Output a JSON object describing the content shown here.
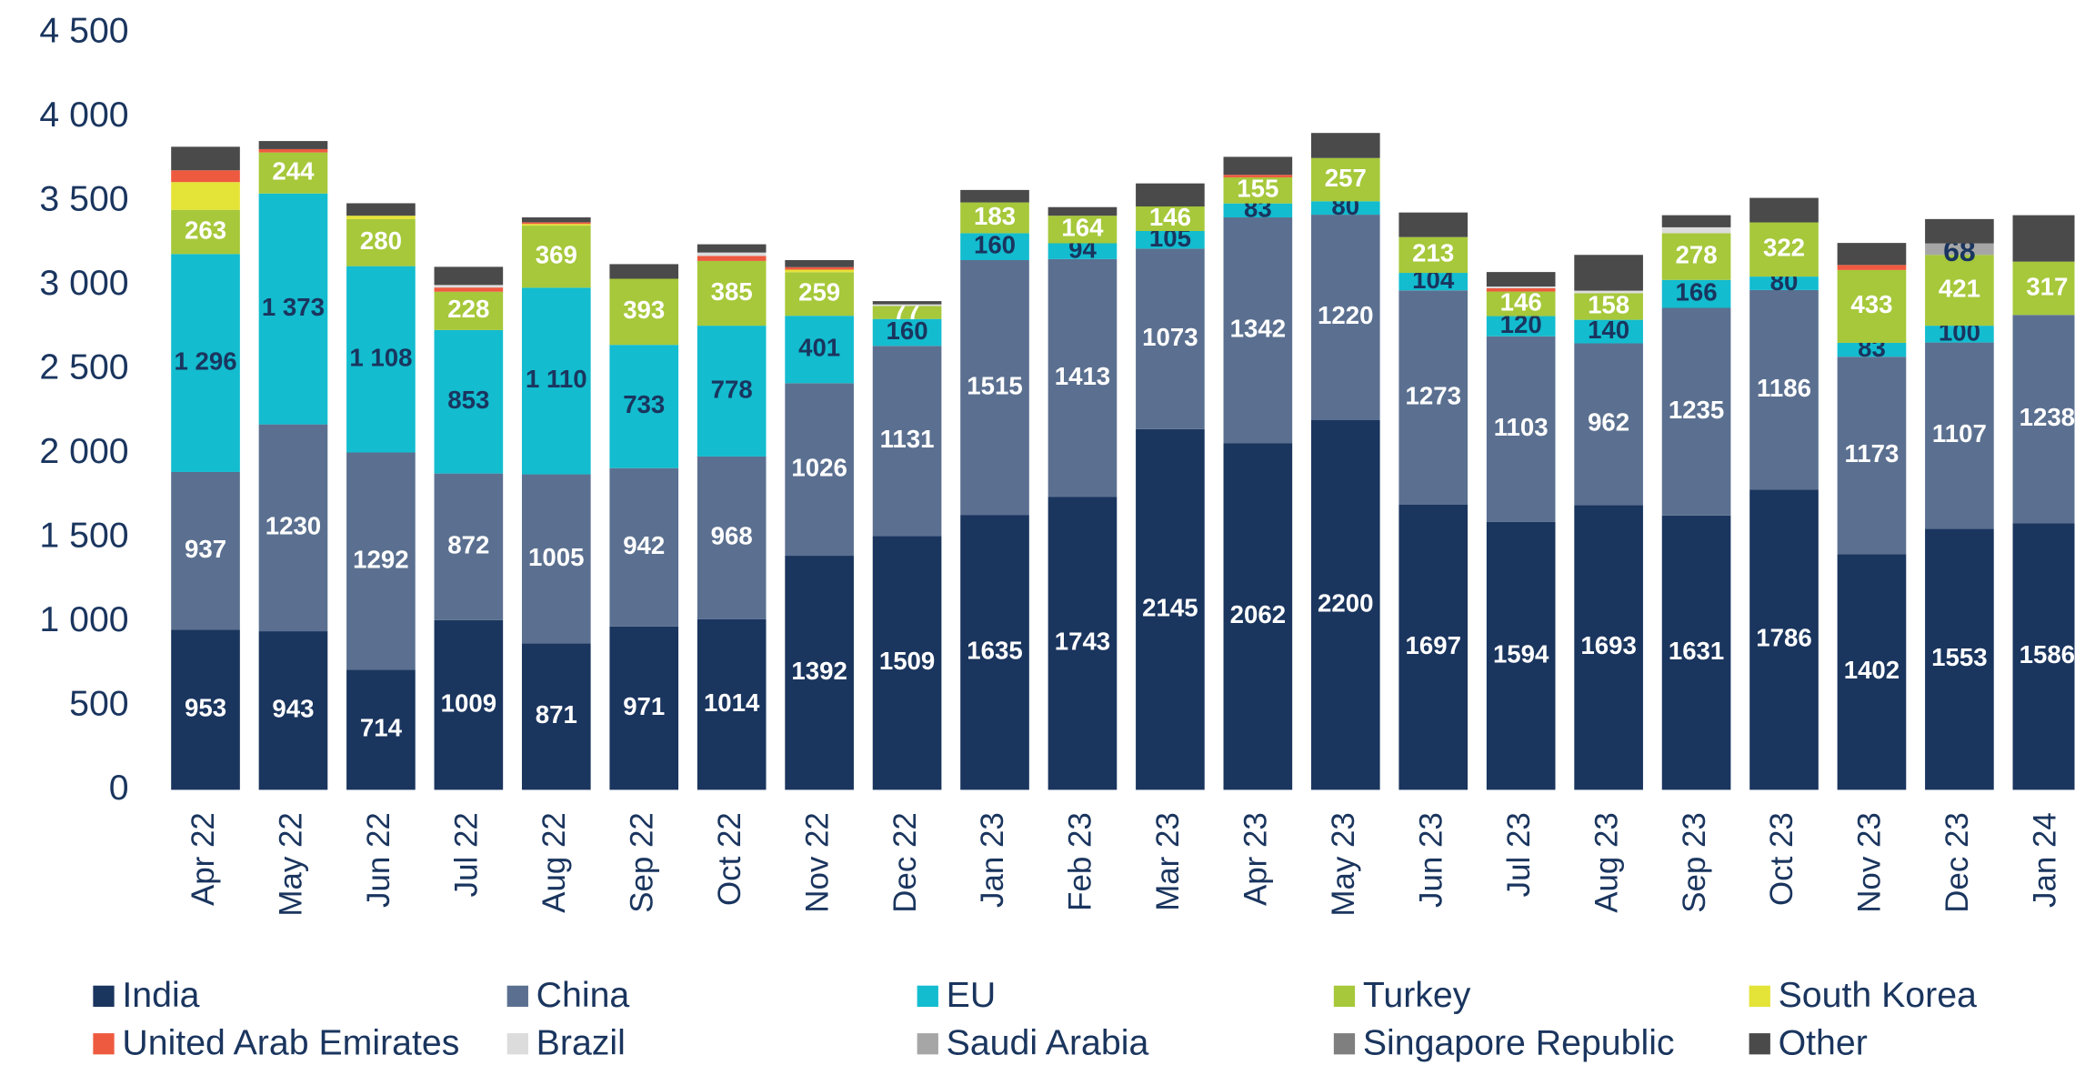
{
  "chart_data": {
    "type": "stacked_bar",
    "categories": [
      "Apr 22",
      "May 22",
      "Jun 22",
      "Jul 22",
      "Aug 22",
      "Sep 22",
      "Oct 22",
      "Nov 22",
      "Dec 22",
      "Jan 23",
      "Feb 23",
      "Mar 23",
      "Apr 23",
      "May 23",
      "Jun 23",
      "Jul 23",
      "Aug 23",
      "Sep 23",
      "Oct 23",
      "Nov 23",
      "Dec 23",
      "Jan 24"
    ],
    "ylim": [
      0,
      4500
    ],
    "yticks": [
      0,
      500,
      {
        "value": 1000,
        "label": "1 000"
      },
      {
        "value": 1500,
        "label": "1 500"
      },
      {
        "value": 2000,
        "label": "2 000"
      },
      {
        "value": 2500,
        "label": "2 500"
      },
      {
        "value": 3000,
        "label": "3 000"
      },
      {
        "value": 3500,
        "label": "3 500"
      },
      {
        "value": 4000,
        "label": "4 000"
      },
      {
        "value": 4500,
        "label": "4 500"
      }
    ],
    "series": [
      {
        "name": "India",
        "color": "#1a355e",
        "label_color": "#ffffff",
        "show_labels": true,
        "values": [
          953,
          943,
          714,
          1009,
          871,
          971,
          1014,
          1392,
          1509,
          1635,
          1743,
          2145,
          2062,
          2200,
          1697,
          1594,
          1693,
          1631,
          1786,
          1402,
          1553,
          1586
        ]
      },
      {
        "name": "China",
        "color": "#5b7090",
        "label_color": "#ffffff",
        "show_labels": true,
        "values": [
          937,
          1230,
          1292,
          872,
          1005,
          942,
          968,
          1026,
          1131,
          1515,
          1413,
          1073,
          1342,
          1220,
          1273,
          1103,
          962,
          1235,
          1186,
          1173,
          1107,
          1238
        ]
      },
      {
        "name": "EU",
        "color": "#13bccf",
        "label_color": "#1a355e",
        "values": [
          1296,
          1373,
          1108,
          853,
          1110,
          733,
          778,
          401,
          160,
          160,
          94,
          105,
          83,
          80,
          104,
          120,
          140,
          166,
          80,
          83,
          100,
          0
        ],
        "value_labels": [
          "1 296",
          "1 373",
          "1 108",
          "853",
          "1 110",
          "733",
          "778",
          "401",
          "160",
          "160",
          "94",
          "105",
          "83",
          "80",
          "104",
          "120",
          "140",
          "166",
          "80",
          "83",
          "100",
          null
        ]
      },
      {
        "name": "Turkey",
        "color": "#a6c83a",
        "label_color": "#ffffff",
        "show_labels": true,
        "values": [
          263,
          244,
          280,
          228,
          369,
          393,
          385,
          259,
          77,
          183,
          164,
          146,
          155,
          257,
          213,
          146,
          158,
          278,
          322,
          433,
          421,
          317
        ]
      },
      {
        "name": "South Korea",
        "color": "#e4e337",
        "values": [
          165,
          0,
          20,
          0,
          10,
          0,
          0,
          15,
          0,
          0,
          0,
          0,
          0,
          0,
          0,
          0,
          0,
          0,
          0,
          0,
          0,
          0
        ]
      },
      {
        "name": "United Arab Emirates",
        "color": "#ee5a40",
        "values": [
          70,
          20,
          0,
          25,
          10,
          0,
          30,
          15,
          0,
          0,
          0,
          0,
          15,
          0,
          0,
          20,
          0,
          0,
          0,
          30,
          0,
          0
        ]
      },
      {
        "name": "Brazil",
        "color": "#dcdcdc",
        "values": [
          0,
          0,
          0,
          15,
          0,
          0,
          20,
          0,
          10,
          0,
          0,
          0,
          0,
          0,
          0,
          10,
          15,
          35,
          0,
          0,
          0,
          0
        ]
      },
      {
        "name": "Saudi Arabia",
        "color": "#a6a6a6",
        "label_color": "#1a355e",
        "values": [
          0,
          0,
          0,
          0,
          0,
          0,
          0,
          0,
          0,
          0,
          0,
          0,
          0,
          0,
          0,
          0,
          0,
          0,
          0,
          0,
          68,
          0
        ],
        "value_labels": [
          null,
          null,
          null,
          null,
          null,
          null,
          null,
          null,
          null,
          null,
          null,
          null,
          null,
          null,
          null,
          null,
          null,
          null,
          null,
          null,
          "68",
          null
        ]
      },
      {
        "name": "Singapore Republic",
        "color": "#7f7f7f",
        "values": [
          0,
          0,
          0,
          0,
          0,
          0,
          0,
          0,
          0,
          0,
          0,
          0,
          0,
          0,
          0,
          0,
          0,
          0,
          0,
          0,
          0,
          0
        ]
      },
      {
        "name": "Other",
        "color": "#4a4a4a",
        "values": [
          140,
          48,
          74,
          108,
          29,
          87,
          49,
          42,
          19,
          74,
          51,
          137,
          107,
          149,
          146,
          86,
          213,
          72,
          146,
          131,
          145,
          276
        ]
      }
    ]
  }
}
